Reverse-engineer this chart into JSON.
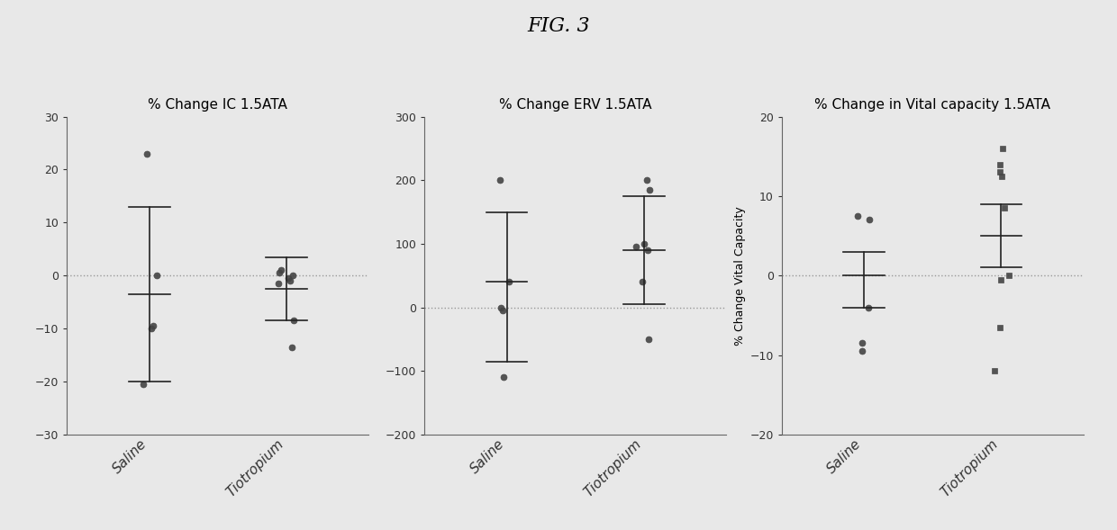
{
  "fig_title": "FIG. 3",
  "subplots": [
    {
      "title": "% Change IC 1.5ATA",
      "ylabel": "",
      "ylim": [
        -30,
        30
      ],
      "yticks": [
        -30,
        -20,
        -10,
        0,
        10,
        20,
        30
      ],
      "groups": [
        "Saline",
        "Tiotropium"
      ],
      "saline_points": [
        23,
        0,
        -9.5,
        -10,
        -20.5
      ],
      "tiotropium_points": [
        1,
        0.5,
        0,
        -0.5,
        -1,
        -1.5,
        -8.5,
        -13.5
      ],
      "saline_mean": -3.5,
      "saline_upper": 13,
      "saline_lower": -20,
      "tiotropium_mean": -2.5,
      "tiotropium_upper": 3.5,
      "tiotropium_lower": -8.5,
      "marker_saline": "o",
      "marker_tiotropium": "o"
    },
    {
      "title": "% Change ERV 1.5ATA",
      "ylabel": "",
      "ylim": [
        -200,
        300
      ],
      "yticks": [
        -200,
        -100,
        0,
        100,
        200,
        300
      ],
      "groups": [
        "Saline",
        "Tiotropium"
      ],
      "saline_points": [
        200,
        40,
        0,
        -5,
        -110
      ],
      "tiotropium_points": [
        185,
        200,
        100,
        95,
        90,
        40,
        -50
      ],
      "saline_mean": 40,
      "saline_upper": 150,
      "saline_lower": -85,
      "tiotropium_mean": 90,
      "tiotropium_upper": 175,
      "tiotropium_lower": 5,
      "marker_saline": "o",
      "marker_tiotropium": "o"
    },
    {
      "title": "% Change in Vital capacity 1.5ATA",
      "ylabel": "% Change Vital Capacity",
      "ylim": [
        -20,
        20
      ],
      "yticks": [
        -20,
        -10,
        0,
        10,
        20
      ],
      "groups": [
        "Saline",
        "Tiotropium"
      ],
      "saline_points": [
        7,
        7.5,
        -4,
        -9.5,
        -8.5
      ],
      "tiotropium_points": [
        16,
        14,
        13,
        12.5,
        8.5,
        0,
        -0.5,
        -6.5,
        -12
      ],
      "saline_mean": 0,
      "saline_upper": 3,
      "saline_lower": -4,
      "tiotropium_mean": 5,
      "tiotropium_upper": 9,
      "tiotropium_lower": 1,
      "marker_saline": "o",
      "marker_tiotropium": "s"
    }
  ],
  "bg_color": "#e8e8e8",
  "plot_bg_color": "#e8e8e8",
  "point_color": "#444444",
  "error_color": "#222222",
  "dashed_line_color": "#999999",
  "title_fontsize": 11,
  "fig_title_fontsize": 16,
  "tick_fontsize": 9,
  "xlabel_fontsize": 11,
  "ylabel_fontsize": 9
}
